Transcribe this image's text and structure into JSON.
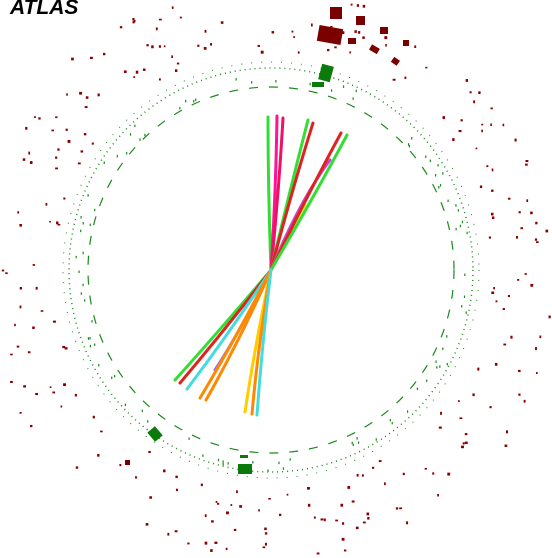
{
  "title": "ATLAS"
}
